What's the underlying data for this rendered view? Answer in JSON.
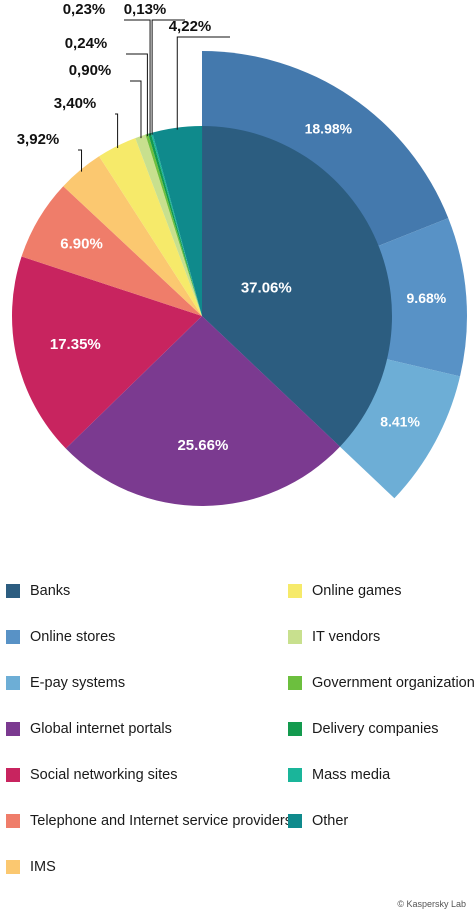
{
  "chart_data": {
    "type": "pie",
    "title": "",
    "inner_slices": [
      {
        "name": "Banks",
        "value": 37.06,
        "label": "37.06%",
        "color": "#2c5d80"
      },
      {
        "name": "Global internet portals",
        "value": 25.66,
        "label": "25.66%",
        "color": "#7b3a90"
      },
      {
        "name": "Social networking sites",
        "value": 17.35,
        "label": "17.35%",
        "color": "#c8245f"
      },
      {
        "name": "Telephone and Internet service providers",
        "value": 6.9,
        "label": "6.90%",
        "color": "#ef7d6a"
      },
      {
        "name": "IMS",
        "value": 3.92,
        "label": "3,92%",
        "color": "#fbc870"
      },
      {
        "name": "Online games",
        "value": 3.4,
        "label": "3,40%",
        "color": "#f6ea6a"
      },
      {
        "name": "IT vendors",
        "value": 0.9,
        "label": "0,90%",
        "color": "#c8e08e"
      },
      {
        "name": "Government organizations",
        "value": 0.24,
        "label": "0,24%",
        "color": "#6cbf3e"
      },
      {
        "name": "Delivery companies",
        "value": 0.23,
        "label": "0,23%",
        "color": "#139a4e"
      },
      {
        "name": "Mass media",
        "value": 0.13,
        "label": "0,13%",
        "color": "#1ab59a"
      },
      {
        "name": "Other",
        "value": 4.22,
        "label": "4,22%",
        "color": "#0f8a8c"
      }
    ],
    "banks_breakdown": [
      {
        "name": "Banks",
        "value": 18.98,
        "label": "18.98%",
        "color": "#4479ad"
      },
      {
        "name": "Online stores",
        "value": 9.68,
        "label": "9.68%",
        "color": "#5892c6"
      },
      {
        "name": "E-pay systems",
        "value": 8.41,
        "label": "8.41%",
        "color": "#6daed6"
      }
    ]
  },
  "legend": {
    "left": [
      {
        "label": "Banks",
        "color": "#2c5d80"
      },
      {
        "label": "Online stores",
        "color": "#5892c6"
      },
      {
        "label": "E-pay systems",
        "color": "#6daed6"
      },
      {
        "label": "Global internet portals",
        "color": "#7b3a90"
      },
      {
        "label": "Social networking sites",
        "color": "#c8245f"
      },
      {
        "label": "Telephone and Internet service providers",
        "color": "#ef7d6a"
      },
      {
        "label": "IMS",
        "color": "#fbc870"
      }
    ],
    "right": [
      {
        "label": "Online games",
        "color": "#f6ea6a"
      },
      {
        "label": "IT vendors",
        "color": "#c8e08e"
      },
      {
        "label": "Government organizations",
        "color": "#6cbf3e"
      },
      {
        "label": "Delivery companies",
        "color": "#139a4e"
      },
      {
        "label": "Mass media",
        "color": "#1ab59a"
      },
      {
        "label": "Other",
        "color": "#0f8a8c"
      }
    ]
  },
  "credit": "© Kaspersky Lab"
}
